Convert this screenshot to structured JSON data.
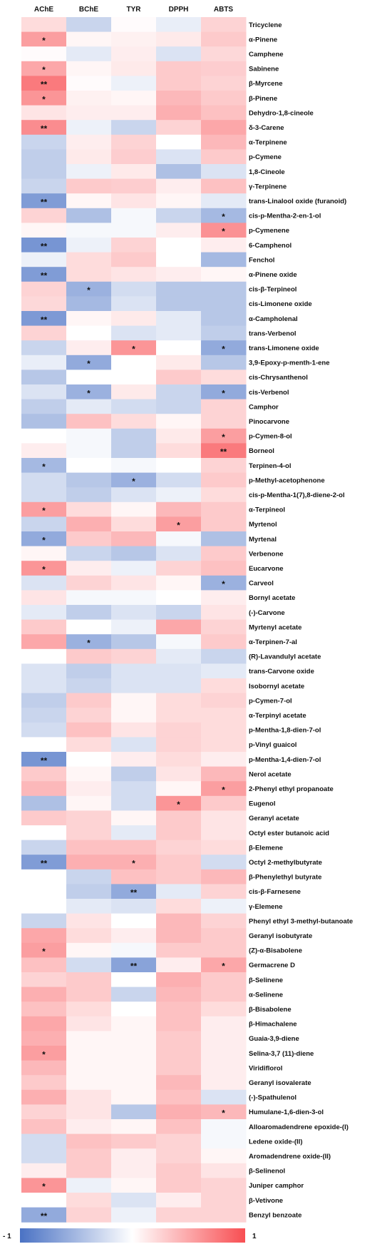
{
  "chart_data": {
    "type": "heatmap",
    "title": "",
    "columns": [
      "AChE",
      "BChE",
      "TYR",
      "DPPH",
      "ABTS"
    ],
    "rows": [
      "Tricyclene",
      "α-Pinene",
      "Camphene",
      "Sabinene",
      "β-Myrcene",
      "β-Pinene",
      "Dehydro-1,8-cineole",
      "δ-3-Carene",
      "α-Terpinene",
      "p-Cymene",
      "1,8-Cineole",
      "γ-Terpinene",
      "trans-Linalool oxide (furanoid)",
      "cis-p-Mentha-2-en-1-ol",
      "p-Cymenene",
      "6-Camphenol",
      "Fenchol",
      "α-Pinene oxide",
      "cis-β-Terpineol",
      "cis-Limonene oxide",
      "α-Campholenal",
      "trans-Verbenol",
      "trans-Limonene oxide",
      "3,9-Epoxy-p-menth-1-ene",
      "cis-Chrysanthenol",
      "cis-Verbenol",
      "Camphor",
      "Pinocarvone",
      "p-Cymen-8-ol",
      "Borneol",
      "Terpinen-4-ol",
      "p-Methyl-acetophenone",
      "cis-p-Mentha-1(7),8-diene-2-ol",
      "α-Terpineol",
      "Myrtenol",
      "Myrtenal",
      "Verbenone",
      "Eucarvone",
      "Carveol",
      "Bornyl acetate",
      "(-)-Carvone",
      "Myrtenyl acetate",
      "α-Terpinen-7-al",
      "(R)-Lavandulyl acetate",
      "trans-Carvone oxide",
      "Isobornyl acetate",
      "p-Cymen-7-ol",
      "α-Terpinyl acetate",
      "p-Mentha-1,8-dien-7-ol",
      "p-Vinyl guaicol",
      "p-Mentha-1,4-dien-7-ol",
      "Nerol acetate",
      "2-Phenyl ethyl propanoate",
      "Eugenol",
      "Geranyl acetate",
      "Octyl ester butanoic acid",
      "β-Elemene",
      "Octyl 2-methylbutyrate",
      "β-Phenylethyl butyrate",
      "cis-β-Farnesene",
      "γ-Elemene",
      "Phenyl ethyl 3-methyl-butanoate",
      "Geranyl isobutyrate",
      "(Z)-α-Bisabolene",
      "Germacrene D",
      "β-Selinene",
      "α-Selinene",
      "β-Bisabolene",
      "β-Himachalene",
      "Guaia-3,9-diene",
      "Selina-3,7 (11)-diene",
      "Viridiflorol",
      "Geranyl isovalerate",
      "(-)-Spathulenol",
      "Humulane-1,6-dien-3-ol",
      "Alloaromadendrene epoxide-(I)",
      "Ledene oxide-(II)",
      "Aromadendrene oxide-(II)",
      "β-Selinenol",
      "Juniper camphor",
      "β-Vetivone",
      "Benzyl benzoate"
    ],
    "values": [
      [
        0.2,
        -0.3,
        0.02,
        -0.12,
        0.25
      ],
      [
        0.55,
        0.05,
        0.08,
        0.12,
        0.3
      ],
      [
        0.02,
        -0.15,
        0.1,
        -0.2,
        0.22
      ],
      [
        0.5,
        0.05,
        0.12,
        0.3,
        0.28
      ],
      [
        0.75,
        0.02,
        -0.1,
        0.3,
        0.25
      ],
      [
        0.6,
        0.08,
        0.05,
        0.4,
        0.3
      ],
      [
        0.15,
        0.1,
        0.1,
        0.45,
        0.35
      ],
      [
        0.65,
        -0.1,
        -0.3,
        0.25,
        0.5
      ],
      [
        -0.3,
        0.1,
        0.25,
        0.0,
        0.4
      ],
      [
        -0.35,
        0.12,
        0.28,
        -0.2,
        0.3
      ],
      [
        -0.35,
        -0.1,
        0.12,
        -0.45,
        -0.2
      ],
      [
        -0.3,
        0.3,
        0.28,
        0.1,
        0.35
      ],
      [
        -0.7,
        0.05,
        0.15,
        0.05,
        -0.15
      ],
      [
        0.25,
        -0.45,
        -0.05,
        -0.3,
        -0.5
      ],
      [
        0.05,
        -0.05,
        -0.05,
        0.1,
        0.62
      ],
      [
        -0.75,
        -0.1,
        0.25,
        0.0,
        0.1
      ],
      [
        -0.1,
        0.2,
        0.3,
        0.0,
        -0.5
      ],
      [
        -0.7,
        0.2,
        0.15,
        0.1,
        0.05
      ],
      [
        0.25,
        -0.55,
        -0.25,
        -0.4,
        -0.4
      ],
      [
        0.22,
        -0.5,
        -0.2,
        -0.4,
        -0.4
      ],
      [
        -0.72,
        0.05,
        0.12,
        -0.15,
        -0.4
      ],
      [
        0.25,
        0.0,
        -0.2,
        -0.15,
        -0.35
      ],
      [
        -0.3,
        0.1,
        0.6,
        0.0,
        -0.6
      ],
      [
        -0.12,
        -0.6,
        0.0,
        0.12,
        -0.4
      ],
      [
        -0.4,
        0.0,
        0.0,
        0.3,
        0.2
      ],
      [
        -0.2,
        -0.55,
        0.12,
        -0.3,
        -0.6
      ],
      [
        -0.35,
        -0.15,
        -0.25,
        -0.3,
        0.25
      ],
      [
        -0.45,
        0.35,
        0.2,
        0.05,
        0.25
      ],
      [
        0.0,
        -0.05,
        -0.35,
        0.12,
        0.55
      ],
      [
        0.1,
        -0.05,
        -0.35,
        0.2,
        0.75
      ],
      [
        -0.5,
        0.0,
        -0.05,
        0.0,
        0.25
      ],
      [
        -0.25,
        -0.4,
        -0.55,
        -0.25,
        0.3
      ],
      [
        -0.25,
        -0.35,
        -0.2,
        -0.1,
        0.2
      ],
      [
        0.55,
        0.2,
        0.05,
        0.4,
        0.3
      ],
      [
        -0.3,
        0.45,
        0.2,
        0.55,
        0.3
      ],
      [
        -0.6,
        0.3,
        0.4,
        -0.05,
        -0.45
      ],
      [
        0.05,
        -0.3,
        -0.4,
        -0.2,
        0.3
      ],
      [
        0.6,
        0.1,
        -0.1,
        0.25,
        0.35
      ],
      [
        -0.2,
        0.25,
        0.15,
        0.05,
        -0.55
      ],
      [
        0.15,
        -0.05,
        -0.05,
        0.0,
        0.1
      ],
      [
        -0.15,
        -0.35,
        -0.2,
        -0.3,
        0.15
      ],
      [
        0.3,
        0.0,
        -0.1,
        0.5,
        0.25
      ],
      [
        0.5,
        -0.55,
        -0.4,
        -0.05,
        0.3
      ],
      [
        0.0,
        0.3,
        0.25,
        -0.15,
        -0.3
      ],
      [
        -0.2,
        -0.35,
        -0.2,
        -0.2,
        -0.15
      ],
      [
        -0.2,
        -0.3,
        -0.2,
        -0.2,
        0.2
      ],
      [
        -0.35,
        0.3,
        0.05,
        0.2,
        0.25
      ],
      [
        -0.3,
        0.25,
        0.05,
        0.2,
        0.2
      ],
      [
        -0.25,
        0.35,
        0.15,
        0.25,
        0.2
      ],
      [
        0.0,
        0.2,
        -0.2,
        0.25,
        0.2
      ],
      [
        -0.75,
        0.0,
        0.1,
        0.2,
        0.1
      ],
      [
        0.3,
        0.05,
        -0.35,
        0.15,
        0.4
      ],
      [
        0.4,
        0.1,
        -0.25,
        0.05,
        0.55
      ],
      [
        -0.45,
        0.05,
        -0.25,
        0.6,
        0.3
      ],
      [
        0.3,
        0.25,
        0.05,
        0.3,
        0.15
      ],
      [
        0.0,
        0.25,
        -0.15,
        0.3,
        0.15
      ],
      [
        -0.3,
        0.35,
        0.35,
        0.25,
        0.2
      ],
      [
        -0.7,
        0.45,
        0.45,
        0.3,
        -0.25
      ],
      [
        0.0,
        -0.3,
        0.35,
        0.3,
        0.4
      ],
      [
        0.0,
        -0.35,
        -0.6,
        -0.15,
        0.25
      ],
      [
        0.0,
        -0.15,
        -0.2,
        0.2,
        -0.1
      ],
      [
        -0.3,
        0.15,
        0.0,
        0.4,
        0.25
      ],
      [
        0.5,
        0.2,
        0.1,
        0.4,
        0.3
      ],
      [
        0.55,
        0.05,
        -0.05,
        0.3,
        0.3
      ],
      [
        0.35,
        -0.25,
        -0.65,
        0.1,
        0.5
      ],
      [
        0.25,
        0.3,
        0.0,
        0.45,
        0.3
      ],
      [
        0.45,
        0.3,
        -0.3,
        0.4,
        0.3
      ],
      [
        0.35,
        0.2,
        0.0,
        0.35,
        0.2
      ],
      [
        0.5,
        0.15,
        0.05,
        0.35,
        0.1
      ],
      [
        0.45,
        0.05,
        0.05,
        0.3,
        0.1
      ],
      [
        0.55,
        0.05,
        0.05,
        0.3,
        0.1
      ],
      [
        0.4,
        0.05,
        0.05,
        0.3,
        0.1
      ],
      [
        0.3,
        0.05,
        0.05,
        0.4,
        0.1
      ],
      [
        0.45,
        0.15,
        0.05,
        0.35,
        -0.2
      ],
      [
        0.25,
        0.15,
        -0.4,
        0.45,
        0.4
      ],
      [
        0.35,
        0.1,
        0.05,
        0.35,
        -0.05
      ],
      [
        -0.25,
        0.35,
        0.3,
        0.25,
        -0.05
      ],
      [
        -0.25,
        0.3,
        0.1,
        0.25,
        0.05
      ],
      [
        0.1,
        0.3,
        0.1,
        0.3,
        0.15
      ],
      [
        0.6,
        -0.1,
        0.05,
        0.3,
        0.25
      ],
      [
        0.0,
        0.2,
        -0.2,
        0.1,
        0.25
      ],
      [
        -0.6,
        0.25,
        -0.1,
        0.25,
        0.25
      ]
    ],
    "significance": [
      [
        "",
        "",
        "",
        "",
        ""
      ],
      [
        "*",
        "",
        "",
        "",
        ""
      ],
      [
        "",
        "",
        "",
        "",
        ""
      ],
      [
        "*",
        "",
        "",
        "",
        ""
      ],
      [
        "**",
        "",
        "",
        "",
        ""
      ],
      [
        "*",
        "",
        "",
        "",
        ""
      ],
      [
        "",
        "",
        "",
        "",
        ""
      ],
      [
        "**",
        "",
        "",
        "",
        ""
      ],
      [
        "",
        "",
        "",
        "",
        ""
      ],
      [
        "",
        "",
        "",
        "",
        ""
      ],
      [
        "",
        "",
        "",
        "",
        ""
      ],
      [
        "",
        "",
        "",
        "",
        ""
      ],
      [
        "**",
        "",
        "",
        "",
        ""
      ],
      [
        "",
        "",
        "",
        "",
        "*"
      ],
      [
        "",
        "",
        "",
        "",
        "*"
      ],
      [
        "**",
        "",
        "",
        "",
        ""
      ],
      [
        "",
        "",
        "",
        "",
        ""
      ],
      [
        "**",
        "",
        "",
        "",
        ""
      ],
      [
        "",
        "*",
        "",
        "",
        ""
      ],
      [
        "",
        "",
        "",
        "",
        ""
      ],
      [
        "**",
        "",
        "",
        "",
        ""
      ],
      [
        "",
        "",
        "",
        "",
        ""
      ],
      [
        "",
        "",
        "*",
        "",
        "*"
      ],
      [
        "",
        "*",
        "",
        "",
        ""
      ],
      [
        "",
        "",
        "",
        "",
        ""
      ],
      [
        "",
        "*",
        "",
        "",
        "*"
      ],
      [
        "",
        "",
        "",
        "",
        ""
      ],
      [
        "",
        "",
        "",
        "",
        ""
      ],
      [
        "",
        "",
        "",
        "",
        "*"
      ],
      [
        "",
        "",
        "",
        "",
        "**"
      ],
      [
        "*",
        "",
        "",
        "",
        ""
      ],
      [
        "",
        "",
        "*",
        "",
        ""
      ],
      [
        "",
        "",
        "",
        "",
        ""
      ],
      [
        "*",
        "",
        "",
        "",
        ""
      ],
      [
        "",
        "",
        "",
        "*",
        ""
      ],
      [
        "*",
        "",
        "",
        "",
        ""
      ],
      [
        "",
        "",
        "",
        "",
        ""
      ],
      [
        "*",
        "",
        "",
        "",
        ""
      ],
      [
        "",
        "",
        "",
        "",
        "*"
      ],
      [
        "",
        "",
        "",
        "",
        ""
      ],
      [
        "",
        "",
        "",
        "",
        ""
      ],
      [
        "",
        "",
        "",
        "",
        ""
      ],
      [
        "",
        "*",
        "",
        "",
        ""
      ],
      [
        "",
        "",
        "",
        "",
        ""
      ],
      [
        "",
        "",
        "",
        "",
        ""
      ],
      [
        "",
        "",
        "",
        "",
        ""
      ],
      [
        "",
        "",
        "",
        "",
        ""
      ],
      [
        "",
        "",
        "",
        "",
        ""
      ],
      [
        "",
        "",
        "",
        "",
        ""
      ],
      [
        "",
        "",
        "",
        "",
        ""
      ],
      [
        "**",
        "",
        "",
        "",
        ""
      ],
      [
        "",
        "",
        "",
        "",
        ""
      ],
      [
        "",
        "",
        "",
        "",
        "*"
      ],
      [
        "",
        "",
        "",
        "*",
        ""
      ],
      [
        "",
        "",
        "",
        "",
        ""
      ],
      [
        "",
        "",
        "",
        "",
        ""
      ],
      [
        "",
        "",
        "",
        "",
        ""
      ],
      [
        "**",
        "",
        "*",
        "",
        ""
      ],
      [
        "",
        "",
        "",
        "",
        ""
      ],
      [
        "",
        "",
        "**",
        "",
        ""
      ],
      [
        "",
        "",
        "",
        "",
        ""
      ],
      [
        "",
        "",
        "",
        "",
        ""
      ],
      [
        "",
        "",
        "",
        "",
        ""
      ],
      [
        "*",
        "",
        "",
        "",
        ""
      ],
      [
        "",
        "",
        "**",
        "",
        "*"
      ],
      [
        "",
        "",
        "",
        "",
        ""
      ],
      [
        "",
        "",
        "",
        "",
        ""
      ],
      [
        "",
        "",
        "",
        "",
        ""
      ],
      [
        "",
        "",
        "",
        "",
        ""
      ],
      [
        "",
        "",
        "",
        "",
        ""
      ],
      [
        "*",
        "",
        "",
        "",
        ""
      ],
      [
        "",
        "",
        "",
        "",
        ""
      ],
      [
        "",
        "",
        "",
        "",
        ""
      ],
      [
        "",
        "",
        "",
        "",
        ""
      ],
      [
        "",
        "",
        "",
        "",
        "*"
      ],
      [
        "",
        "",
        "",
        "",
        ""
      ],
      [
        "",
        "",
        "",
        "",
        ""
      ],
      [
        "",
        "",
        "",
        "",
        ""
      ],
      [
        "",
        "",
        "",
        "",
        ""
      ],
      [
        "*",
        "",
        "",
        "",
        ""
      ],
      [
        "",
        "",
        "",
        "",
        ""
      ],
      [
        "**",
        "",
        "",
        "",
        ""
      ]
    ],
    "colorbar": {
      "min_label": "- 1",
      "max_label": "1",
      "range": [
        -1,
        1
      ],
      "low_color": "#4a72c4",
      "mid_color": "#ffffff",
      "high_color": "#f84e52"
    }
  }
}
